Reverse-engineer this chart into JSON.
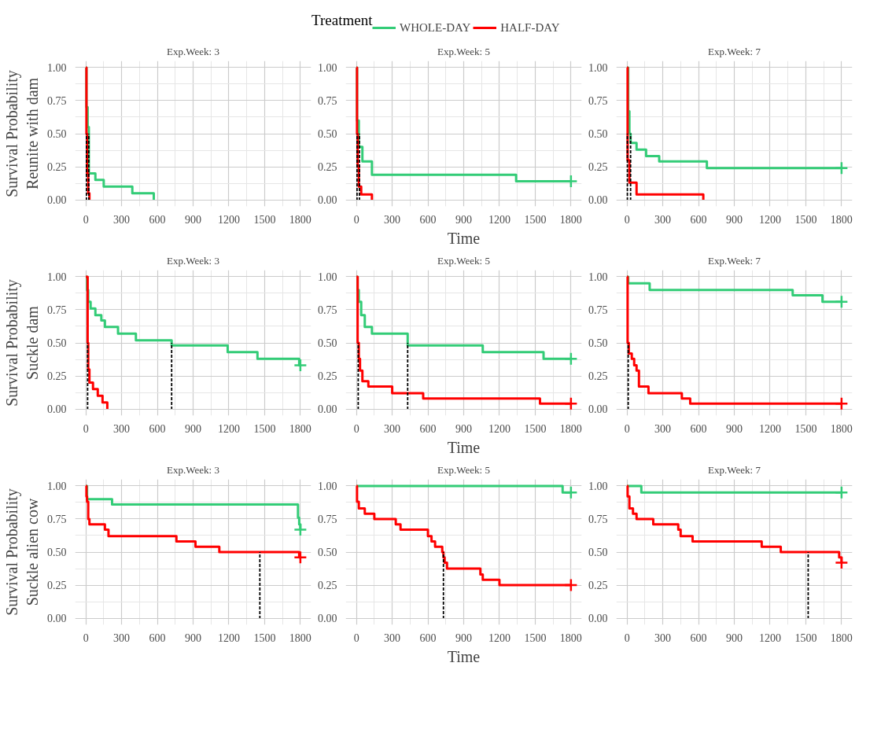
{
  "chart_data": [
    {
      "type": "step",
      "title": "Exp.Week: 3",
      "ylabel": "Survival Probability\nReunite with dam",
      "legend": "top",
      "legend_title": "Treatment",
      "xlim": [
        -90,
        1890
      ],
      "ylim": [
        -0.05,
        1.05
      ],
      "xticks": [
        0,
        300,
        600,
        900,
        1200,
        1500,
        1800
      ],
      "yticks": [
        {
          "value": 0,
          "label": "0.00"
        },
        {
          "value": 0.25,
          "label": "0.25"
        },
        {
          "value": 0.5,
          "label": "0.50"
        },
        {
          "value": 0.75,
          "label": "0.75"
        },
        {
          "value": 1,
          "label": "1.00"
        }
      ],
      "grid": true,
      "series": [
        {
          "name": "WHOLE-DAY",
          "color": "#33cc77",
          "x": [
            0,
            5,
            15,
            25,
            80,
            150,
            390,
            570
          ],
          "values": [
            1,
            0.7,
            0.55,
            0.2,
            0.15,
            0.1,
            0.05,
            0
          ]
        },
        {
          "name": "HALF-DAY",
          "color": "#ff0000",
          "x": [
            0,
            5,
            10,
            20,
            30
          ],
          "values": [
            1,
            0.5,
            0.2,
            0.05,
            0
          ]
        },
        {
          "type": "line",
          "line_style": "dashed",
          "color": "#000000",
          "x": [
            5,
            5
          ],
          "values": [
            0,
            0.5
          ]
        },
        {
          "type": "line",
          "line_style": "dashed",
          "color": "#000000",
          "x": [
            25,
            25
          ],
          "values": [
            0,
            0.5
          ]
        }
      ]
    },
    {
      "type": "step",
      "title": "Exp.Week: 5",
      "xlabel": "Time",
      "xlim": [
        -90,
        1890
      ],
      "ylim": [
        -0.05,
        1.05
      ],
      "xticks": [
        0,
        300,
        600,
        900,
        1200,
        1500,
        1800
      ],
      "yticks": [
        {
          "value": 0,
          "label": "0.00"
        },
        {
          "value": 0.25,
          "label": "0.25"
        },
        {
          "value": 0.5,
          "label": "0.50"
        },
        {
          "value": 0.75,
          "label": "0.75"
        },
        {
          "value": 1,
          "label": "1.00"
        }
      ],
      "grid": true,
      "series": [
        {
          "color": "#33cc77",
          "x": [
            0,
            5,
            20,
            50,
            130,
            1340,
            1800
          ],
          "values": [
            1,
            0.6,
            0.4,
            0.29,
            0.19,
            0.14,
            0.14
          ]
        },
        {
          "color": "#ff0000",
          "x": [
            0,
            5,
            10,
            20,
            40,
            130
          ],
          "values": [
            1,
            0.5,
            0.25,
            0.1,
            0.04,
            0
          ]
        },
        {
          "type": "line",
          "line_style": "dashed",
          "color": "#000000",
          "x": [
            5,
            5
          ],
          "values": [
            0,
            0.5
          ]
        },
        {
          "type": "line",
          "line_style": "dashed",
          "color": "#000000",
          "x": [
            25,
            25
          ],
          "values": [
            0,
            0.5
          ]
        },
        {
          "type": "scatter",
          "marker": "cross",
          "color": "#33cc77",
          "x": [
            1800
          ],
          "values": [
            0.14
          ]
        }
      ]
    },
    {
      "type": "step",
      "title": "Exp.Week: 7",
      "xlim": [
        -90,
        1890
      ],
      "ylim": [
        -0.05,
        1.05
      ],
      "xticks": [
        0,
        300,
        600,
        900,
        1200,
        1500,
        1800
      ],
      "yticks": [
        {
          "value": 0,
          "label": "0.00"
        },
        {
          "value": 0.25,
          "label": "0.25"
        },
        {
          "value": 0.5,
          "label": "0.50"
        },
        {
          "value": 0.75,
          "label": "0.75"
        },
        {
          "value": 1,
          "label": "1.00"
        }
      ],
      "grid": true,
      "series": [
        {
          "color": "#33cc77",
          "x": [
            0,
            10,
            20,
            30,
            80,
            160,
            270,
            670,
            1800
          ],
          "values": [
            1,
            0.67,
            0.5,
            0.43,
            0.38,
            0.33,
            0.29,
            0.24,
            0.24
          ]
        },
        {
          "color": "#ff0000",
          "x": [
            0,
            5,
            20,
            80,
            640
          ],
          "values": [
            1,
            0.3,
            0.13,
            0.04,
            0
          ]
        },
        {
          "type": "line",
          "line_style": "dashed",
          "color": "#000000",
          "x": [
            3,
            3
          ],
          "values": [
            0,
            0.5
          ]
        },
        {
          "type": "line",
          "line_style": "dashed",
          "color": "#000000",
          "x": [
            30,
            30
          ],
          "values": [
            0,
            0.5
          ]
        },
        {
          "type": "scatter",
          "marker": "cross",
          "color": "#33cc77",
          "x": [
            1800
          ],
          "values": [
            0.24
          ]
        }
      ]
    },
    {
      "type": "step",
      "title": "Exp.Week: 3",
      "ylabel": "Survival Probability\nSuckle dam",
      "xlim": [
        -90,
        1890
      ],
      "ylim": [
        -0.05,
        1.05
      ],
      "xticks": [
        0,
        300,
        600,
        900,
        1200,
        1500,
        1800
      ],
      "yticks": [
        {
          "value": 0,
          "label": "0.00"
        },
        {
          "value": 0.25,
          "label": "0.25"
        },
        {
          "value": 0.5,
          "label": "0.50"
        },
        {
          "value": 0.75,
          "label": "0.75"
        },
        {
          "value": 1,
          "label": "1.00"
        }
      ],
      "grid": true,
      "series": [
        {
          "color": "#33cc77",
          "x": [
            0,
            10,
            20,
            40,
            80,
            130,
            160,
            270,
            420,
            720,
            1190,
            1440,
            1790,
            1800
          ],
          "values": [
            1,
            0.9,
            0.81,
            0.76,
            0.71,
            0.67,
            0.62,
            0.57,
            0.52,
            0.48,
            0.43,
            0.38,
            0.33,
            0.33
          ]
        },
        {
          "color": "#ff0000",
          "x": [
            0,
            15,
            20,
            30,
            60,
            100,
            140,
            180
          ],
          "values": [
            1,
            0.5,
            0.3,
            0.2,
            0.15,
            0.1,
            0.05,
            0
          ]
        },
        {
          "type": "line",
          "line_style": "dashed",
          "color": "#000000",
          "x": [
            15,
            15
          ],
          "values": [
            0,
            0.5
          ]
        },
        {
          "type": "line",
          "line_style": "dashed",
          "color": "#000000",
          "x": [
            720,
            720
          ],
          "values": [
            0,
            0.5
          ]
        },
        {
          "type": "scatter",
          "marker": "cross",
          "color": "#33cc77",
          "x": [
            1800
          ],
          "values": [
            0.33
          ]
        }
      ]
    },
    {
      "type": "step",
      "title": "Exp.Week: 5",
      "xlabel": "Time",
      "xlim": [
        -90,
        1890
      ],
      "ylim": [
        -0.05,
        1.05
      ],
      "xticks": [
        0,
        300,
        600,
        900,
        1200,
        1500,
        1800
      ],
      "yticks": [
        {
          "value": 0,
          "label": "0.00"
        },
        {
          "value": 0.25,
          "label": "0.25"
        },
        {
          "value": 0.5,
          "label": "0.50"
        },
        {
          "value": 0.75,
          "label": "0.75"
        },
        {
          "value": 1,
          "label": "1.00"
        }
      ],
      "grid": true,
      "series": [
        {
          "color": "#33cc77",
          "x": [
            0,
            10,
            20,
            40,
            70,
            130,
            430,
            1060,
            1570,
            1800
          ],
          "values": [
            1,
            0.9,
            0.81,
            0.71,
            0.62,
            0.57,
            0.48,
            0.43,
            0.38,
            0.38
          ]
        },
        {
          "color": "#ff0000",
          "x": [
            0,
            10,
            20,
            30,
            50,
            100,
            300,
            560,
            1540,
            1800
          ],
          "values": [
            1,
            0.5,
            0.38,
            0.29,
            0.21,
            0.17,
            0.12,
            0.08,
            0.04,
            0.04
          ]
        },
        {
          "type": "line",
          "line_style": "dashed",
          "color": "#000000",
          "x": [
            15,
            15
          ],
          "values": [
            0,
            0.5
          ]
        },
        {
          "type": "line",
          "line_style": "dashed",
          "color": "#000000",
          "x": [
            430,
            430
          ],
          "values": [
            0,
            0.5
          ]
        },
        {
          "type": "scatter",
          "marker": "cross",
          "color": "#33cc77",
          "x": [
            1800
          ],
          "values": [
            0.38
          ]
        },
        {
          "type": "scatter",
          "marker": "cross",
          "color": "#ff0000",
          "x": [
            1800
          ],
          "values": [
            0.04
          ]
        }
      ]
    },
    {
      "type": "step",
      "title": "Exp.Week: 7",
      "xlim": [
        -90,
        1890
      ],
      "ylim": [
        -0.05,
        1.05
      ],
      "xticks": [
        0,
        300,
        600,
        900,
        1200,
        1500,
        1800
      ],
      "yticks": [
        {
          "value": 0,
          "label": "0.00"
        },
        {
          "value": 0.25,
          "label": "0.25"
        },
        {
          "value": 0.5,
          "label": "0.50"
        },
        {
          "value": 0.75,
          "label": "0.75"
        },
        {
          "value": 1,
          "label": "1.00"
        }
      ],
      "grid": true,
      "series": [
        {
          "color": "#33cc77",
          "x": [
            0,
            10,
            190,
            1390,
            1640,
            1800
          ],
          "values": [
            1,
            0.95,
            0.9,
            0.86,
            0.81,
            0.81
          ]
        },
        {
          "color": "#ff0000",
          "x": [
            0,
            5,
            15,
            40,
            60,
            80,
            100,
            180,
            460,
            530,
            1800
          ],
          "values": [
            1,
            0.5,
            0.42,
            0.38,
            0.33,
            0.29,
            0.17,
            0.12,
            0.08,
            0.04,
            0.04
          ]
        },
        {
          "type": "line",
          "line_style": "dashed",
          "color": "#000000",
          "x": [
            10,
            10
          ],
          "values": [
            0,
            0.5
          ]
        },
        {
          "type": "scatter",
          "marker": "cross",
          "color": "#33cc77",
          "x": [
            1800
          ],
          "values": [
            0.81
          ]
        },
        {
          "type": "scatter",
          "marker": "cross",
          "color": "#ff0000",
          "x": [
            1800
          ],
          "values": [
            0.04
          ]
        }
      ]
    },
    {
      "type": "step",
      "title": "Exp.Week: 3",
      "ylabel": "Survival Probability\nSuckle alien cow",
      "xlim": [
        -90,
        1890
      ],
      "ylim": [
        -0.05,
        1.05
      ],
      "xticks": [
        0,
        300,
        600,
        900,
        1200,
        1500,
        1800
      ],
      "yticks": [
        {
          "value": 0,
          "label": "0.00"
        },
        {
          "value": 0.25,
          "label": "0.25"
        },
        {
          "value": 0.5,
          "label": "0.50"
        },
        {
          "value": 0.75,
          "label": "0.75"
        },
        {
          "value": 1,
          "label": "1.00"
        }
      ],
      "grid": true,
      "series": [
        {
          "color": "#33cc77",
          "x": [
            0,
            10,
            220,
            1780,
            1790,
            1800
          ],
          "values": [
            1,
            0.9,
            0.86,
            0.76,
            0.71,
            0.67
          ]
        },
        {
          "color": "#ff0000",
          "x": [
            0,
            5,
            10,
            20,
            30,
            160,
            190,
            760,
            920,
            1120,
            1790,
            1800
          ],
          "values": [
            1,
            0.92,
            0.88,
            0.75,
            0.71,
            0.67,
            0.62,
            0.58,
            0.54,
            0.5,
            0.46,
            0.46
          ]
        },
        {
          "type": "line",
          "line_style": "dashed",
          "color": "#000000",
          "x": [
            1460,
            1460
          ],
          "values": [
            0,
            0.5
          ]
        },
        {
          "type": "scatter",
          "marker": "cross",
          "color": "#33cc77",
          "x": [
            1800
          ],
          "values": [
            0.67
          ]
        },
        {
          "type": "scatter",
          "marker": "cross",
          "color": "#ff0000",
          "x": [
            1800
          ],
          "values": [
            0.46
          ]
        }
      ]
    },
    {
      "type": "step",
      "title": "Exp.Week: 5",
      "xlabel": "Time",
      "xlim": [
        -90,
        1890
      ],
      "ylim": [
        -0.05,
        1.05
      ],
      "xticks": [
        0,
        300,
        600,
        900,
        1200,
        1500,
        1800
      ],
      "yticks": [
        {
          "value": 0,
          "label": "0.00"
        },
        {
          "value": 0.25,
          "label": "0.25"
        },
        {
          "value": 0.5,
          "label": "0.50"
        },
        {
          "value": 0.75,
          "label": "0.75"
        },
        {
          "value": 1,
          "label": "1.00"
        }
      ],
      "grid": true,
      "series": [
        {
          "color": "#33cc77",
          "x": [
            0,
            1730,
            1800
          ],
          "values": [
            1,
            0.95,
            0.95
          ]
        },
        {
          "color": "#ff0000",
          "x": [
            0,
            5,
            20,
            70,
            150,
            330,
            370,
            600,
            630,
            660,
            720,
            730,
            740,
            760,
            1040,
            1060,
            1200,
            1800
          ],
          "values": [
            1,
            0.88,
            0.83,
            0.79,
            0.75,
            0.71,
            0.67,
            0.62,
            0.58,
            0.54,
            0.5,
            0.46,
            0.42,
            0.375,
            0.33,
            0.29,
            0.25,
            0.25
          ]
        },
        {
          "type": "line",
          "line_style": "dashed",
          "color": "#000000",
          "x": [
            730,
            730
          ],
          "values": [
            0,
            0.5
          ]
        },
        {
          "type": "scatter",
          "marker": "cross",
          "color": "#33cc77",
          "x": [
            1800
          ],
          "values": [
            0.95
          ]
        },
        {
          "type": "scatter",
          "marker": "cross",
          "color": "#ff0000",
          "x": [
            1800
          ],
          "values": [
            0.25
          ]
        }
      ]
    },
    {
      "type": "step",
      "title": "Exp.Week: 7",
      "xlim": [
        -90,
        1890
      ],
      "ylim": [
        -0.05,
        1.05
      ],
      "xticks": [
        0,
        300,
        600,
        900,
        1200,
        1500,
        1800
      ],
      "yticks": [
        {
          "value": 0,
          "label": "0.00"
        },
        {
          "value": 0.25,
          "label": "0.25"
        },
        {
          "value": 0.5,
          "label": "0.50"
        },
        {
          "value": 0.75,
          "label": "0.75"
        },
        {
          "value": 1,
          "label": "1.00"
        }
      ],
      "grid": true,
      "series": [
        {
          "color": "#33cc77",
          "x": [
            0,
            120,
            1800
          ],
          "values": [
            1,
            0.95,
            0.95
          ]
        },
        {
          "color": "#ff0000",
          "x": [
            0,
            5,
            20,
            50,
            80,
            220,
            430,
            450,
            550,
            1130,
            1290,
            1780,
            1800
          ],
          "values": [
            1,
            0.92,
            0.83,
            0.79,
            0.75,
            0.71,
            0.67,
            0.62,
            0.58,
            0.54,
            0.5,
            0.46,
            0.42
          ]
        },
        {
          "type": "line",
          "line_style": "dashed",
          "color": "#000000",
          "x": [
            1520,
            1520
          ],
          "values": [
            0,
            0.5
          ]
        },
        {
          "type": "scatter",
          "marker": "cross",
          "color": "#33cc77",
          "x": [
            1800
          ],
          "values": [
            0.95
          ]
        },
        {
          "type": "scatter",
          "marker": "cross",
          "color": "#ff0000",
          "x": [
            1800
          ],
          "values": [
            0.42
          ]
        }
      ]
    }
  ]
}
